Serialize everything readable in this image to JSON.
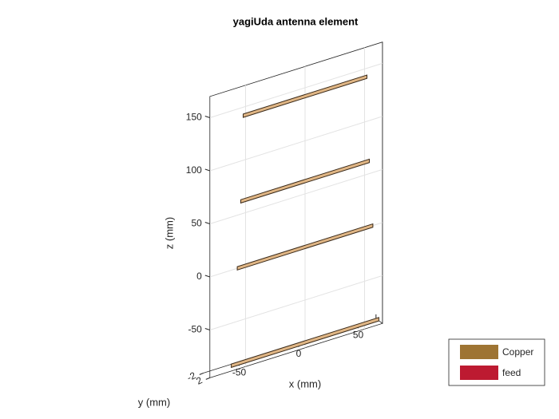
{
  "chart_data": {
    "type": "antenna3d",
    "title": "yagiUda antenna element",
    "xlabel": "x (mm)",
    "ylabel": "y (mm)",
    "zlabel": "z (mm)",
    "xlim": [
      -80,
      65
    ],
    "ylim": [
      -2,
      2
    ],
    "zlim": [
      -95,
      170
    ],
    "xticks": [
      -50,
      0,
      50
    ],
    "yticks": [
      -2,
      2
    ],
    "zticks": [
      -50,
      0,
      50,
      100,
      150
    ],
    "grid": true,
    "elements": {
      "z": [
        -90,
        0,
        62,
        142
      ],
      "half_length": [
        62,
        57,
        54,
        52
      ]
    },
    "series": [
      {
        "name": "Copper",
        "color": "#9e7433"
      },
      {
        "name": "feed",
        "color": "#bd1a31"
      }
    ],
    "legend": "bottom-right"
  }
}
